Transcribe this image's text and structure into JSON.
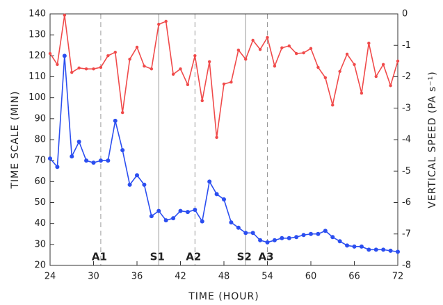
{
  "chart_data": {
    "type": "line",
    "xlabel": "TIME (HOUR)",
    "ylabel": "TIME SCALE (MIN)",
    "y2label": "VERTICAL SPEED (PA s⁻¹)",
    "x": [
      24,
      25,
      26,
      27,
      28,
      29,
      30,
      31,
      32,
      33,
      34,
      35,
      36,
      37,
      38,
      39,
      40,
      41,
      42,
      43,
      44,
      45,
      46,
      47,
      48,
      49,
      50,
      51,
      52,
      53,
      54,
      55,
      56,
      57,
      58,
      59,
      60,
      61,
      62,
      63,
      64,
      65,
      66,
      67,
      68,
      69,
      70,
      71,
      72
    ],
    "series": [
      {
        "color": "#2b4ef0",
        "axis": "y",
        "values": [
          71,
          67,
          120,
          72,
          79,
          70,
          69,
          70,
          70,
          89,
          75,
          58.5,
          63,
          58.5,
          43.5,
          46,
          41.5,
          42.5,
          46,
          45.5,
          46.5,
          41,
          60,
          54,
          51.5,
          40.5,
          38,
          35.5,
          35.5,
          32,
          31,
          32,
          33,
          33,
          33.5,
          34.5,
          35,
          35,
          36.5,
          33.5,
          31.5,
          29.5,
          29,
          29,
          27.5,
          27.5,
          27.5,
          27,
          26.5
        ]
      },
      {
        "color": "#f04a4a",
        "axis": "y2",
        "values": [
          -1.26,
          -1.61,
          -0.04,
          -1.86,
          -1.72,
          -1.75,
          -1.75,
          -1.7,
          -1.33,
          -1.22,
          -3.14,
          -1.44,
          -1.06,
          -1.66,
          -1.75,
          -0.33,
          -0.24,
          -1.92,
          -1.75,
          -2.25,
          -1.33,
          -2.76,
          -1.52,
          -3.93,
          -2.23,
          -2.17,
          -1.15,
          -1.44,
          -0.84,
          -1.13,
          -0.75,
          -1.66,
          -1.08,
          -1.02,
          -1.26,
          -1.24,
          -1.1,
          -1.7,
          -2.03,
          -2.9,
          -1.83,
          -1.28,
          -1.61,
          -2.52,
          -0.93,
          -1.99,
          -1.61,
          -2.28,
          -1.5
        ]
      }
    ],
    "markers": [
      {
        "x": 31,
        "label": "A1",
        "style": "dashed"
      },
      {
        "x": 39,
        "label": "S1",
        "style": "solid"
      },
      {
        "x": 44,
        "label": "A2",
        "style": "dashed"
      },
      {
        "x": 51,
        "label": "S2",
        "style": "solid"
      },
      {
        "x": 54,
        "label": "A3",
        "style": "dashed"
      }
    ],
    "xlim": [
      24,
      72
    ],
    "xticks": [
      24,
      30,
      36,
      42,
      48,
      54,
      60,
      66,
      72
    ],
    "ylim": [
      20,
      140
    ],
    "yticks": [
      20,
      30,
      40,
      50,
      60,
      70,
      80,
      90,
      100,
      110,
      120,
      130,
      140
    ],
    "y2lim": [
      -8,
      0
    ],
    "y2ticks": [
      -8,
      -7,
      -6,
      -5,
      -4,
      -3,
      -2,
      -1,
      0
    ]
  }
}
